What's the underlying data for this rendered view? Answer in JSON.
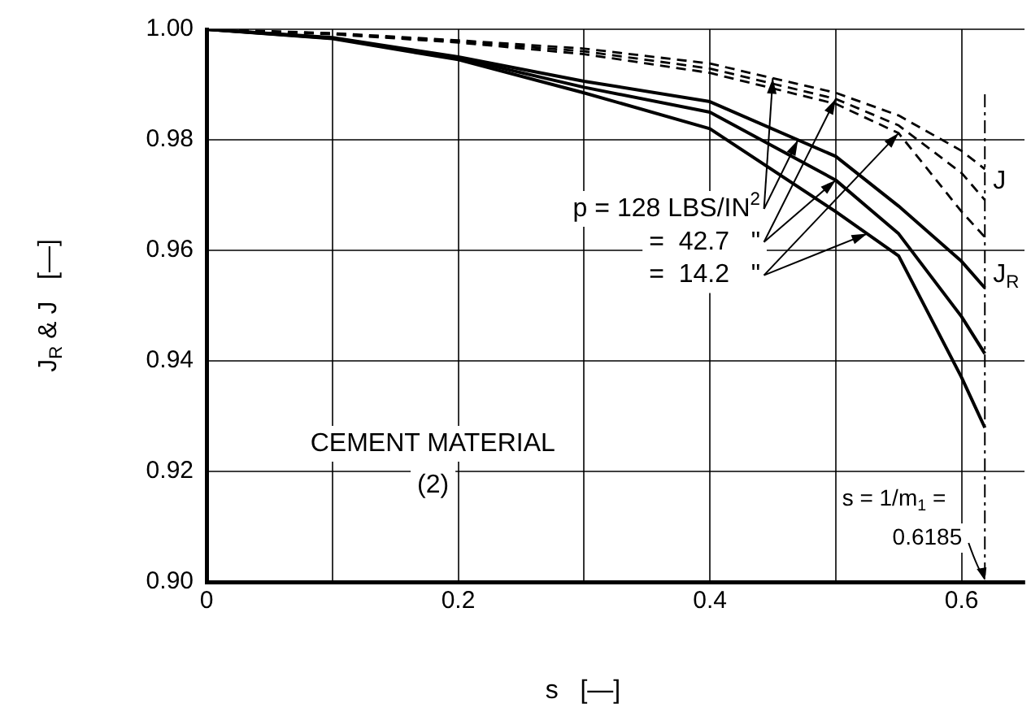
{
  "chart_data": {
    "type": "line",
    "xlabel": "s   [—]",
    "ylabel": "J$_{R}$ & J   [—]",
    "xlim": [
      0,
      0.65
    ],
    "ylim": [
      0.9,
      1.0
    ],
    "xticks": [
      0,
      {
        "value": 0.1,
        "label": null
      },
      0.2,
      {
        "value": 0.3,
        "label": null
      },
      0.4,
      {
        "value": 0.5,
        "label": null
      },
      0.6
    ],
    "yticks": [
      {
        "value": 0.9,
        "label": "0.90"
      },
      0.92,
      0.94,
      0.96,
      0.98,
      {
        "value": 1.0,
        "label": "1.00"
      }
    ],
    "grid": true,
    "legend": false,
    "marker": "none",
    "x": [
      0,
      0.1,
      0.2,
      0.3,
      0.4,
      0.5,
      0.55,
      0.6,
      0.6185
    ],
    "series": [
      {
        "color": "#000000",
        "line_style": "dashed",
        "values": [
          1.0,
          0.9993,
          0.998,
          0.9965,
          0.9938,
          0.9885,
          0.9844,
          0.978,
          0.9747
        ]
      },
      {
        "color": "#000000",
        "line_style": "dashed",
        "values": [
          1.0,
          0.9992,
          0.9978,
          0.996,
          0.9929,
          0.9874,
          0.9826,
          0.974,
          0.9691
        ]
      },
      {
        "color": "#000000",
        "line_style": "dashed",
        "values": [
          1.0,
          0.9991,
          0.9976,
          0.9955,
          0.9921,
          0.9865,
          0.9812,
          0.967,
          0.9624
        ]
      },
      {
        "color": "#000000",
        "line_style": "solid",
        "values": [
          1.0,
          0.9985,
          0.995,
          0.9906,
          0.9869,
          0.977,
          0.968,
          0.958,
          0.9532
        ]
      },
      {
        "color": "#000000",
        "line_style": "solid",
        "values": [
          1.0,
          0.9984,
          0.9948,
          0.9895,
          0.985,
          0.9727,
          0.963,
          0.948,
          0.9413
        ]
      },
      {
        "color": "#000000",
        "line_style": "solid",
        "values": [
          1.0,
          0.9983,
          0.9945,
          0.9885,
          0.982,
          0.967,
          0.959,
          0.937,
          0.9279
        ]
      }
    ],
    "ref_lines": [
      {
        "axis": "x",
        "value": 0.6185,
        "label": "s = 1/m$_{1}$ = 0.6185",
        "line_style": "dashdot"
      }
    ],
    "annotations": [
      {
        "text": "p = 128 LBS/IN$^{2}$",
        "x": 0.45,
        "y": 0.99115
      },
      {
        "text": "=  42.7   \"",
        "x": 0.5,
        "y": 0.9874
      },
      {
        "text": "=  14.2   \"",
        "x": 0.55,
        "y": 0.9812
      },
      "J",
      "J$_{R}$",
      "CEMENT MATERIAL",
      "(2)"
    ]
  }
}
